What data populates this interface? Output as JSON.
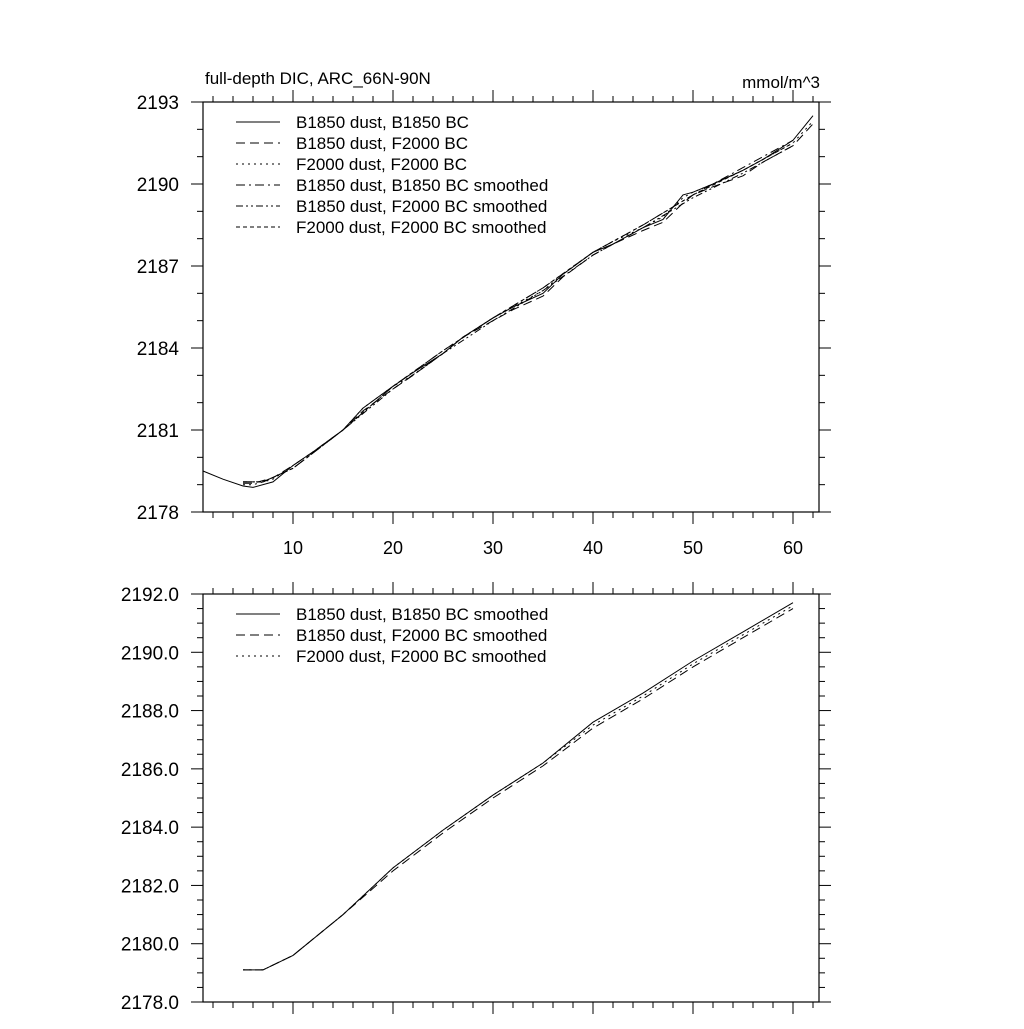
{
  "chart_data": [
    {
      "type": "line",
      "title": "full-depth DIC, ARC_66N-90N",
      "units_label": "mmol/m^3",
      "xlabel": "",
      "ylabel": "",
      "xlim": [
        1,
        62.6
      ],
      "ylim": [
        2178,
        2193
      ],
      "x_ticks": [
        10,
        20,
        30,
        40,
        50,
        60
      ],
      "x_tick_labels": [
        "10",
        "20",
        "30",
        "40",
        "50",
        "60"
      ],
      "y_ticks": [
        2178,
        2181,
        2184,
        2187,
        2190,
        2193
      ],
      "y_tick_labels": [
        "2178",
        "2181",
        "2184",
        "2187",
        "2190",
        "2193"
      ],
      "grid": false,
      "legend_position": "top-left",
      "series": [
        {
          "name": "B1850 dust, B1850 BC",
          "dash": "solid",
          "x": [
            1,
            3,
            5,
            6,
            8,
            10,
            12,
            15,
            17,
            20,
            22,
            25,
            27,
            30,
            32,
            35,
            37,
            40,
            42,
            45,
            47,
            49,
            50,
            52,
            55,
            57,
            60,
            62
          ],
          "y": [
            2179.5,
            2179.2,
            2178.95,
            2178.9,
            2179.1,
            2179.7,
            2180.2,
            2181.0,
            2181.8,
            2182.6,
            2183.1,
            2183.8,
            2184.4,
            2185.1,
            2185.5,
            2186.0,
            2186.7,
            2187.5,
            2187.8,
            2188.4,
            2188.7,
            2189.6,
            2189.7,
            2190.0,
            2190.5,
            2190.9,
            2191.6,
            2192.5
          ]
        },
        {
          "name": "B1850 dust, F2000 BC",
          "dash": "long-dash",
          "x": [
            5,
            6,
            8,
            10,
            12,
            15,
            17,
            20,
            22,
            25,
            27,
            30,
            32,
            35,
            37,
            40,
            42,
            45,
            47,
            49,
            50,
            52,
            55,
            57,
            60,
            62
          ],
          "y": [
            2179.05,
            2179.05,
            2179.25,
            2179.7,
            2180.2,
            2181.0,
            2181.7,
            2182.5,
            2183.0,
            2183.8,
            2184.4,
            2185.0,
            2185.4,
            2185.9,
            2186.6,
            2187.4,
            2187.8,
            2188.3,
            2188.6,
            2189.3,
            2189.6,
            2189.9,
            2190.3,
            2190.8,
            2191.4,
            2192.2
          ]
        },
        {
          "name": "F2000 dust, F2000 BC",
          "dash": "dotted",
          "x": [
            5,
            6,
            8,
            10,
            12,
            15,
            17,
            20,
            22,
            25,
            27,
            30,
            32,
            35,
            37,
            40,
            42,
            45,
            47,
            49,
            50,
            52,
            55,
            57,
            60,
            62
          ],
          "y": [
            2179.0,
            2179.0,
            2179.2,
            2179.7,
            2180.2,
            2181.0,
            2181.8,
            2182.6,
            2183.0,
            2183.8,
            2184.4,
            2185.1,
            2185.5,
            2186.1,
            2186.7,
            2187.5,
            2187.9,
            2188.4,
            2188.8,
            2189.5,
            2189.7,
            2190.0,
            2190.5,
            2190.9,
            2191.5,
            2192.3
          ]
        },
        {
          "name": "B1850 dust, B1850 BC smoothed",
          "dash": "dash-dot",
          "x": [
            5,
            7,
            10,
            15,
            20,
            25,
            30,
            35,
            40,
            45,
            50,
            55,
            60
          ],
          "y": [
            2179.1,
            2179.1,
            2179.6,
            2181.0,
            2182.6,
            2183.9,
            2185.1,
            2186.2,
            2187.5,
            2188.5,
            2189.6,
            2190.6,
            2191.6
          ]
        },
        {
          "name": "B1850 dust, F2000 BC smoothed",
          "dash": "dash-dot-dot",
          "x": [
            5,
            7,
            10,
            15,
            20,
            25,
            30,
            35,
            40,
            45,
            50,
            55,
            60
          ],
          "y": [
            2179.1,
            2179.1,
            2179.6,
            2181.0,
            2182.5,
            2183.8,
            2185.0,
            2186.1,
            2187.4,
            2188.4,
            2189.5,
            2190.4,
            2191.4
          ]
        },
        {
          "name": "F2000 dust, F2000 BC smoothed",
          "dash": "short-dash",
          "x": [
            5,
            7,
            10,
            15,
            20,
            25,
            30,
            35,
            40,
            45,
            50,
            55,
            60
          ],
          "y": [
            2179.1,
            2179.1,
            2179.6,
            2181.0,
            2182.6,
            2183.9,
            2185.1,
            2186.2,
            2187.5,
            2188.5,
            2189.6,
            2190.5,
            2191.5
          ]
        }
      ]
    },
    {
      "type": "line",
      "xlabel": "",
      "ylabel": "",
      "xlim": [
        1,
        62.6
      ],
      "ylim": [
        2178,
        2192
      ],
      "x_ticks": [
        10,
        20,
        30,
        40,
        50,
        60
      ],
      "y_ticks": [
        2178,
        2180,
        2182,
        2184,
        2186,
        2188,
        2190,
        2192
      ],
      "y_tick_labels": [
        "2178.0",
        "2180.0",
        "2182.0",
        "2184.0",
        "2186.0",
        "2188.0",
        "2190.0",
        "2192.0"
      ],
      "grid": false,
      "legend_position": "top-left",
      "series": [
        {
          "name": "B1850 dust, B1850 BC smoothed",
          "dash": "solid",
          "x": [
            5,
            7,
            10,
            15,
            20,
            25,
            30,
            35,
            40,
            45,
            50,
            55,
            60
          ],
          "y": [
            2179.1,
            2179.1,
            2179.6,
            2181.0,
            2182.6,
            2183.9,
            2185.1,
            2186.2,
            2187.6,
            2188.6,
            2189.7,
            2190.7,
            2191.7
          ]
        },
        {
          "name": "B1850 dust, F2000 BC smoothed",
          "dash": "long-dash",
          "x": [
            5,
            7,
            10,
            15,
            20,
            25,
            30,
            35,
            40,
            45,
            50,
            55,
            60
          ],
          "y": [
            2179.1,
            2179.1,
            2179.6,
            2181.0,
            2182.5,
            2183.8,
            2185.0,
            2186.1,
            2187.4,
            2188.4,
            2189.5,
            2190.5,
            2191.5
          ]
        },
        {
          "name": "F2000 dust, F2000 BC smoothed",
          "dash": "dotted",
          "x": [
            5,
            7,
            10,
            15,
            20,
            25,
            30,
            35,
            40,
            45,
            50,
            55,
            60
          ],
          "y": [
            2179.1,
            2179.1,
            2179.6,
            2181.0,
            2182.6,
            2183.9,
            2185.1,
            2186.2,
            2187.5,
            2188.5,
            2189.6,
            2190.6,
            2191.6
          ]
        }
      ]
    }
  ]
}
